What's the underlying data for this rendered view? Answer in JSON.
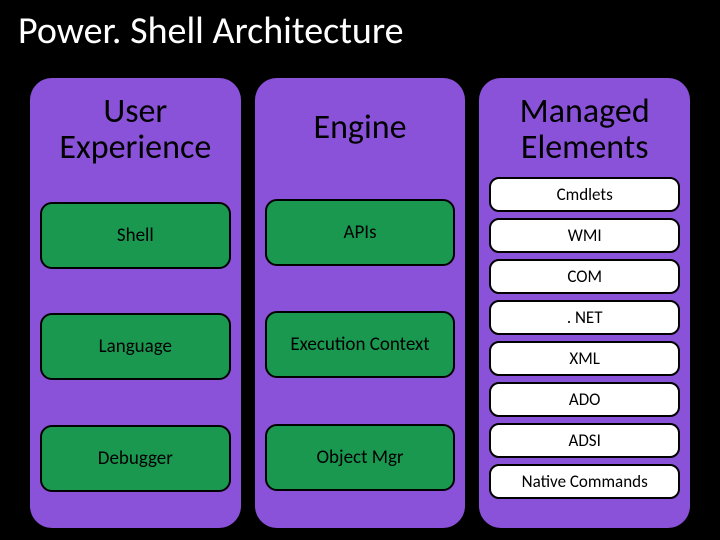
{
  "title": "Power. Shell Architecture",
  "column_color": "#8a52d8",
  "green": "#1a9850",
  "white": "#ffffff",
  "columns": [
    {
      "header": "User Experience",
      "box_style": "green",
      "items": [
        "Shell",
        "Language",
        "Debugger"
      ]
    },
    {
      "header": "Engine",
      "box_style": "green",
      "items": [
        "APIs",
        "Execution Context",
        "Object Mgr"
      ]
    },
    {
      "header": "Managed Elements",
      "box_style": "white",
      "items": [
        "Cmdlets",
        "WMI",
        "COM",
        ". NET",
        "XML",
        "ADO",
        "ADSI",
        "Native Commands"
      ]
    }
  ]
}
